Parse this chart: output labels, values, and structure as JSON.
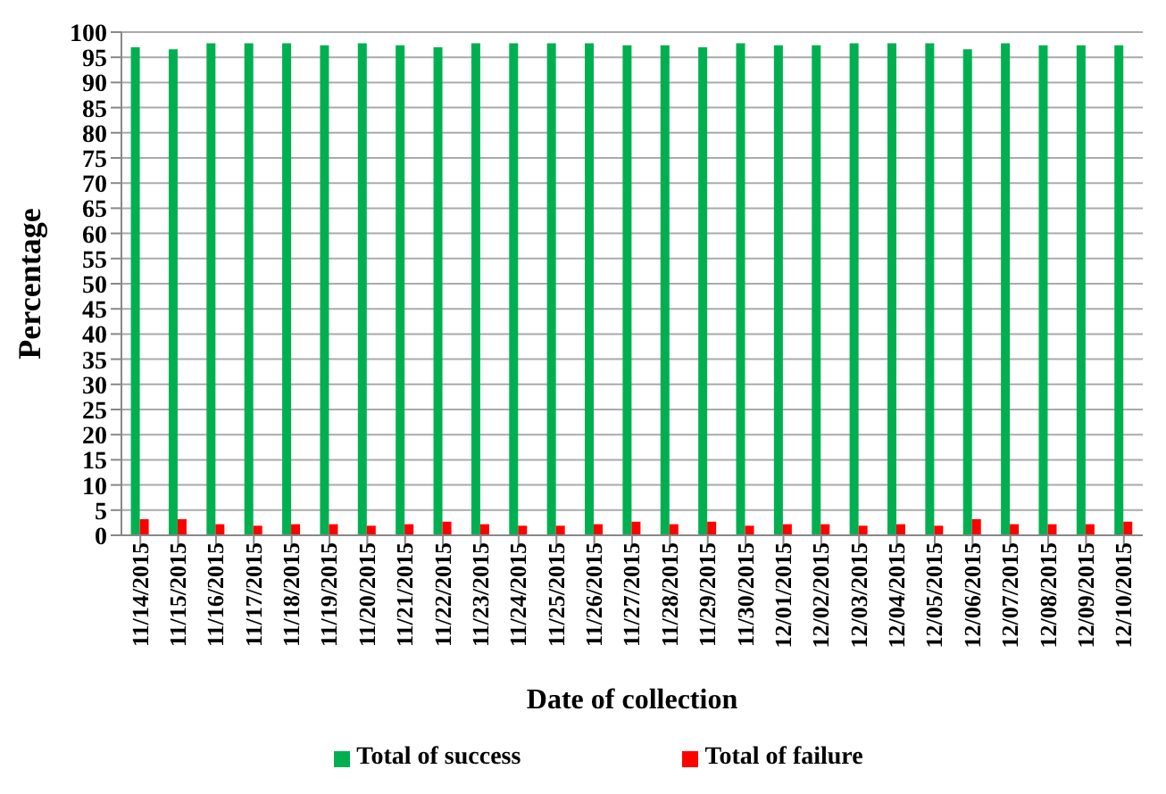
{
  "chart_data": {
    "type": "bar",
    "xlabel": "Date of collection",
    "ylabel": "Percentage",
    "categories": [
      "11/14/2015",
      "11/15/2015",
      "11/16/2015",
      "11/17/2015",
      "11/18/2015",
      "11/19/2015",
      "11/20/2015",
      "11/21/2015",
      "11/22/2015",
      "11/23/2015",
      "11/24/2015",
      "11/25/2015",
      "11/26/2015",
      "11/27/2015",
      "11/28/2015",
      "11/29/2015",
      "11/30/2015",
      "12/01/2015",
      "12/02/2015",
      "12/03/2015",
      "12/04/2015",
      "12/05/2015",
      "12/06/2015",
      "12/07/2015",
      "12/08/2015",
      "12/09/2015",
      "12/10/2015"
    ],
    "series": [
      {
        "name": "Total of success",
        "color": "#00b050",
        "values": [
          97,
          96.6,
          97.8,
          97.8,
          97.8,
          97.4,
          97.8,
          97.4,
          97,
          97.8,
          97.8,
          97.8,
          97.8,
          97.4,
          97.4,
          97,
          97.8,
          97.4,
          97.4,
          97.8,
          97.8,
          97.8,
          96.6,
          97.8,
          97.4,
          97.4,
          97.4
        ]
      },
      {
        "name": "Total of failure",
        "color": "#ff0000",
        "values": [
          3.2,
          3.2,
          2.2,
          1.9,
          2.2,
          2.2,
          1.9,
          2.2,
          2.7,
          2.2,
          1.9,
          1.9,
          2.2,
          2.7,
          2.2,
          2.7,
          1.9,
          2.2,
          2.2,
          1.9,
          2.2,
          1.9,
          3.2,
          2.2,
          2.2,
          2.2,
          2.7
        ]
      }
    ],
    "ylim": [
      0,
      100
    ],
    "yticks": [
      0,
      5,
      10,
      15,
      20,
      25,
      30,
      35,
      40,
      45,
      50,
      55,
      60,
      65,
      70,
      75,
      80,
      85,
      90,
      95,
      100
    ],
    "grid": "y",
    "legend": "bottom"
  }
}
